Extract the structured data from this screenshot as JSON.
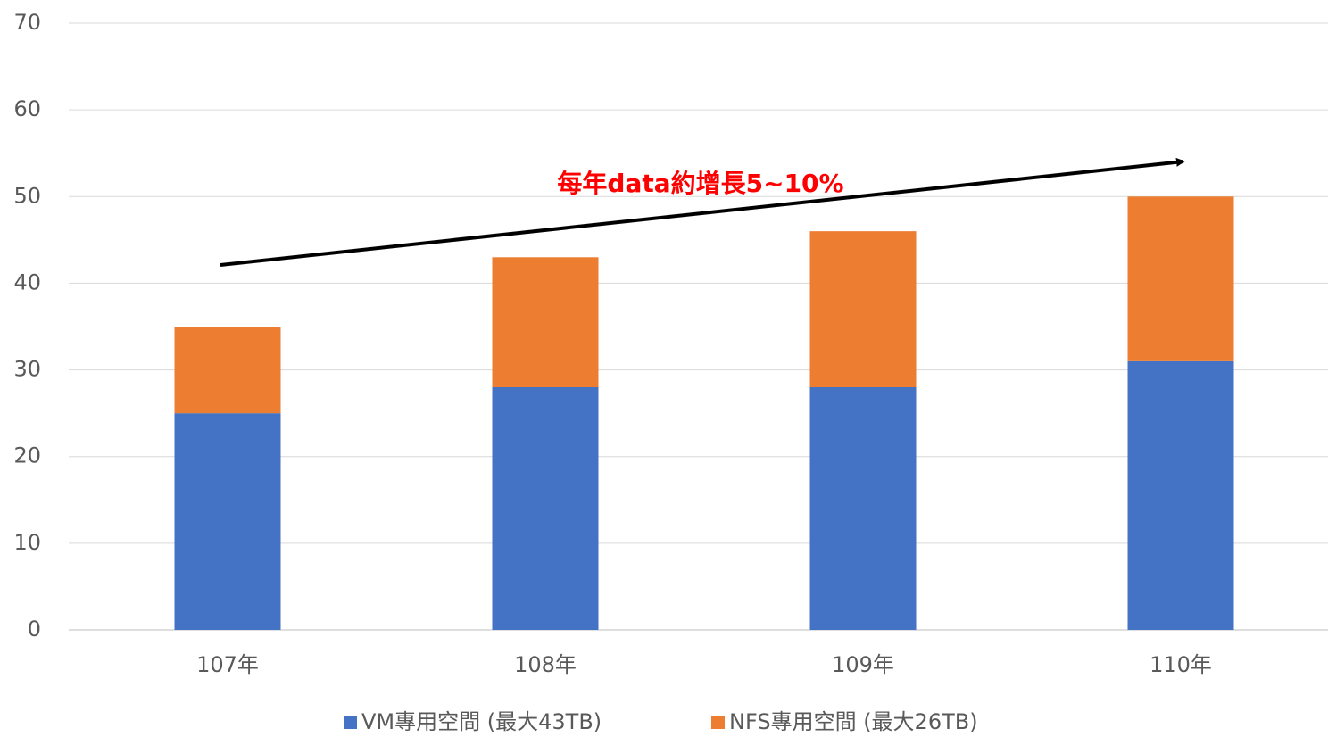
{
  "chart_data": {
    "type": "bar",
    "stacked": true,
    "categories": [
      "107年",
      "108年",
      "109年",
      "110年"
    ],
    "series": [
      {
        "name": "VM專用空間 (最大43TB)",
        "color": "#4472c4",
        "values": [
          25,
          28,
          28,
          31
        ]
      },
      {
        "name": "NFS專用空間 (最大26TB)",
        "color": "#ed7d31",
        "values": [
          10,
          15,
          18,
          19
        ]
      }
    ],
    "ylim": [
      0,
      70
    ],
    "yticks": [
      0,
      10,
      20,
      30,
      40,
      50,
      60,
      70
    ],
    "grid": true,
    "legend": "bottom",
    "annotation": "每年data約增長5~10%"
  }
}
